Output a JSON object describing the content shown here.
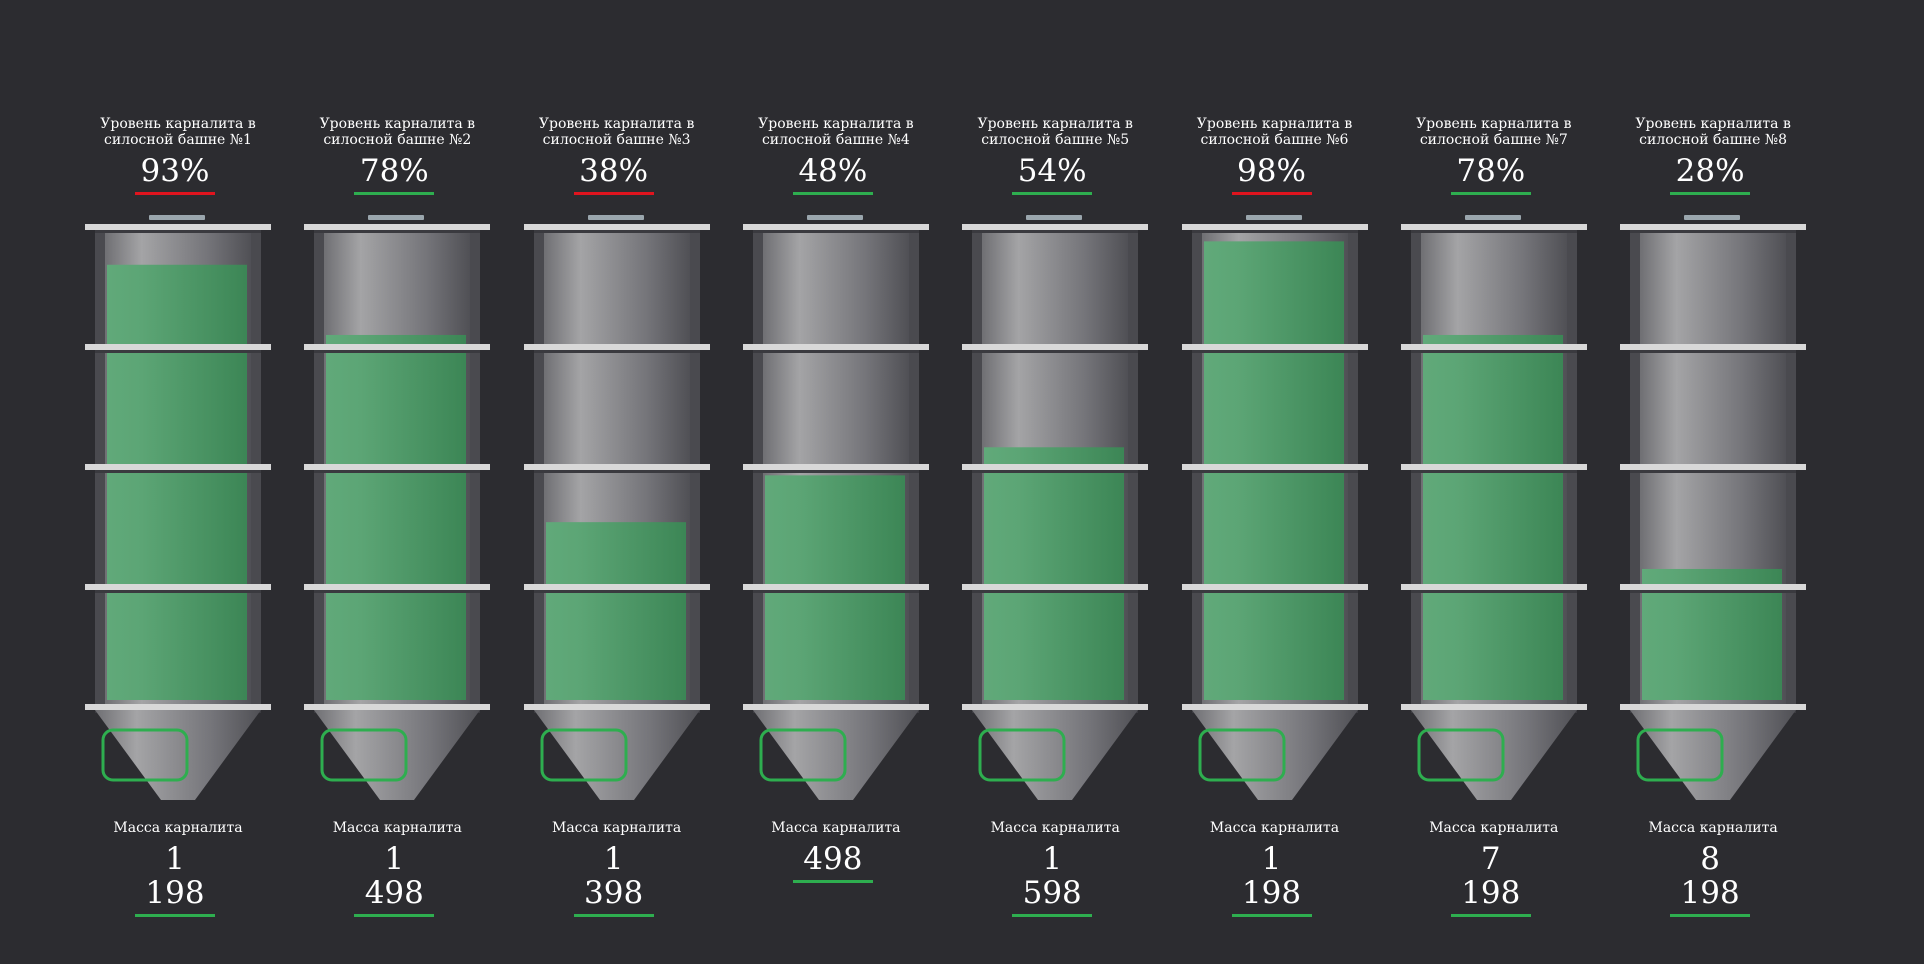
{
  "colors": {
    "background": "#2c2c30",
    "fill": "#4caf6e",
    "ok": "#2eae4f",
    "alert": "#e0141e",
    "sensor": "#2eae4f"
  },
  "silos": [
    {
      "caption": "Уровень карналита в силосной башне №1",
      "level_text": "93%",
      "level": 0.93,
      "status": "alert",
      "mass_label": "Масса карналита",
      "mass": "1 198",
      "mass_status": "ok"
    },
    {
      "caption": "Уровень карналита в силосной башне №2",
      "level_text": "78%",
      "level": 0.78,
      "status": "ok",
      "mass_label": "Масса карналита",
      "mass": "1 498",
      "mass_status": "ok"
    },
    {
      "caption": "Уровень карналита в силосной башне №3",
      "level_text": "38%",
      "level": 0.38,
      "status": "alert",
      "mass_label": "Масса карналита",
      "mass": "1 398",
      "mass_status": "ok"
    },
    {
      "caption": "Уровень карналита в силосной башне №4",
      "level_text": "48%",
      "level": 0.48,
      "status": "ok",
      "mass_label": "Масса карналита",
      "mass": "498",
      "mass_status": "ok"
    },
    {
      "caption": "Уровень карналита в силосной башне №5",
      "level_text": "54%",
      "level": 0.54,
      "status": "ok",
      "mass_label": "Масса карналита",
      "mass": "1 598",
      "mass_status": "ok"
    },
    {
      "caption": "Уровень карналита в силосной башне №6",
      "level_text": "98%",
      "level": 0.98,
      "status": "alert",
      "mass_label": "Масса карналита",
      "mass": "1 198",
      "mass_status": "ok"
    },
    {
      "caption": "Уровень карналита в силосной башне №7",
      "level_text": "78%",
      "level": 0.78,
      "status": "ok",
      "mass_label": "Масса карналита",
      "mass": "7 198",
      "mass_status": "ok"
    },
    {
      "caption": "Уровень карналита в силосной башне №8",
      "level_text": "28%",
      "level": 0.28,
      "status": "ok",
      "mass_label": "Масса карналита",
      "mass": "8 198",
      "mass_status": "ok"
    }
  ]
}
